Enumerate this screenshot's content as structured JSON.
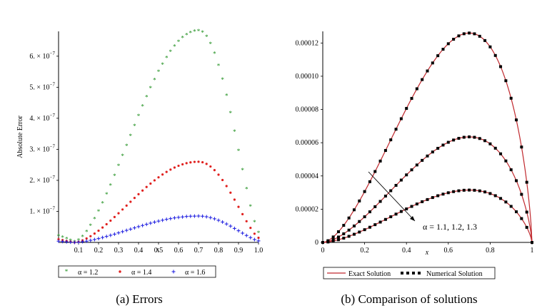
{
  "chart_data": [
    {
      "type": "scatter",
      "caption": "(a) Errors",
      "xlabel": "x",
      "ylabel": "Absolute Error",
      "xlim": [
        0,
        1
      ],
      "ylim": [
        0,
        6.8e-07
      ],
      "x_ticks": [
        0.1,
        0.2,
        0.3,
        0.4,
        0.5,
        0.6,
        0.7,
        0.8,
        0.9,
        1.0
      ],
      "x_tick_labels": [
        "0.1",
        "0.2",
        "0.3",
        "0.4",
        "0.5",
        "0.6",
        "0.7",
        "0.8",
        "0.9",
        "1.0"
      ],
      "y_ticks": [
        1e-07,
        2e-07,
        3e-07,
        4e-07,
        5e-07,
        6e-07
      ],
      "y_tick_labels": [
        {
          "mantissa": "1.",
          "exp": "−7"
        },
        {
          "mantissa": "2.",
          "exp": "−7"
        },
        {
          "mantissa": "3.",
          "exp": "−7"
        },
        {
          "mantissa": "4.",
          "exp": "−7"
        },
        {
          "mantissa": "5.",
          "exp": "−7"
        },
        {
          "mantissa": "6.",
          "exp": "−7"
        }
      ],
      "tick_times": "× 10",
      "peak_x": 0.7,
      "min_x": 0.08,
      "num_points": 51,
      "series": [
        {
          "name": "α = 1.2",
          "color": "#138a13",
          "marker": "star",
          "peak": 6.8e-07,
          "start": 2e-08,
          "min": 0.0,
          "end": 3e-08
        },
        {
          "name": "α = 1.4",
          "color": "#e0201e",
          "marker": "dot",
          "peak": 2.6e-07,
          "start": 1e-08,
          "min": 0.0,
          "end": 1.5e-08
        },
        {
          "name": "α = 1.6",
          "color": "#1a1ae0",
          "marker": "plus",
          "peak": 8.5e-08,
          "start": 4e-09,
          "min": 0.0,
          "end": 5e-09
        }
      ]
    },
    {
      "type": "line",
      "caption": "(b) Comparison of solutions",
      "xlabel": "x",
      "ylabel": "",
      "xlim": [
        0,
        1
      ],
      "ylim": [
        0,
        0.000127
      ],
      "x_ticks": [
        0,
        0.2,
        0.4,
        0.6,
        0.8,
        1
      ],
      "x_tick_labels": [
        "0",
        "0.2",
        "0.4",
        "0.6",
        "0.8",
        "1"
      ],
      "y_ticks": [
        0,
        2e-05,
        4e-05,
        6e-05,
        8e-05,
        0.0001,
        0.00012
      ],
      "y_tick_labels": [
        "0",
        "0.00002",
        "0.00004",
        "0.00006",
        "0.00008",
        "0.00010",
        "0.00012"
      ],
      "annotation": "α = 1.1, 1.2, 1.3",
      "peak_x": 0.7,
      "num_points": 41,
      "curves": [
        {
          "alpha": 1.1,
          "peak": 0.000126
        },
        {
          "alpha": 1.2,
          "peak": 6.35e-05
        },
        {
          "alpha": 1.3,
          "peak": 3.15e-05
        }
      ],
      "legend": [
        {
          "name": "Exact Solution",
          "color": "#c0282d",
          "style": "solid"
        },
        {
          "name": "Numerical Solution",
          "color": "#000000",
          "style": "dotted"
        }
      ]
    }
  ]
}
